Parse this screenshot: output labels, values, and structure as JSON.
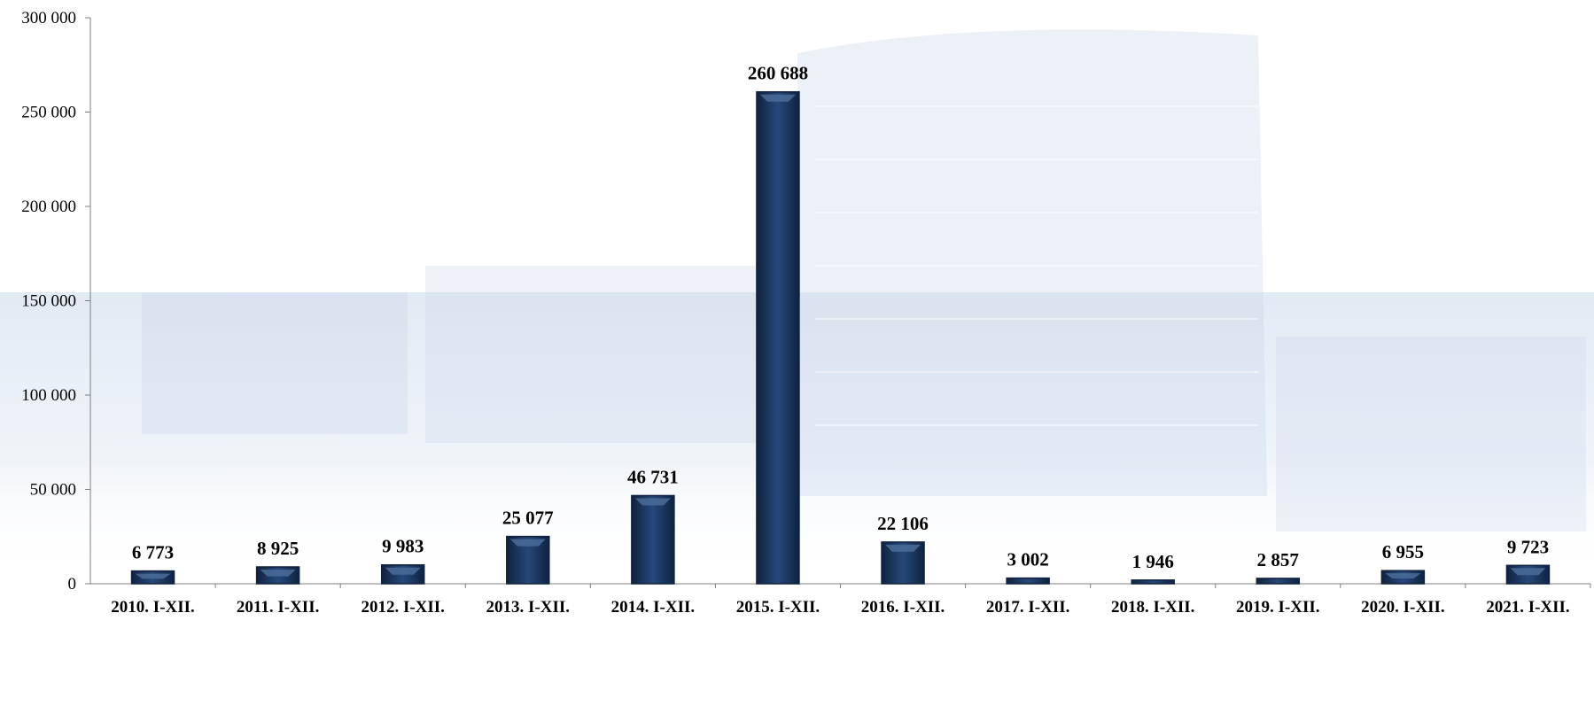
{
  "colors": {
    "bar": "#1f3a64",
    "bar_dark": "#10223f",
    "bar_highlight": "#4a6c98",
    "axis": "#7f7f7f",
    "background_tint": "#c9d8ea"
  },
  "chart_data": {
    "type": "bar",
    "title": "",
    "xlabel": "",
    "ylabel": "",
    "ylim": [
      0,
      300000
    ],
    "yticks": [
      0,
      50000,
      100000,
      150000,
      200000,
      250000,
      300000
    ],
    "ytick_labels": [
      "0",
      "50 000",
      "100 000",
      "150 000",
      "200 000",
      "250 000",
      "300 000"
    ],
    "grid": false,
    "legend": "none",
    "categories": [
      "2010. I-XII.",
      "2011. I-XII.",
      "2012. I-XII.",
      "2013. I-XII.",
      "2014. I-XII.",
      "2015. I-XII.",
      "2016. I-XII.",
      "2017. I-XII.",
      "2018. I-XII.",
      "2019. I-XII.",
      "2020. I-XII.",
      "2021. I-XII."
    ],
    "values": [
      6773,
      8925,
      9983,
      25077,
      46731,
      260688,
      22106,
      3002,
      1946,
      2857,
      6955,
      9723
    ],
    "value_labels": [
      "6 773",
      "8 925",
      "9 983",
      "25 077",
      "46 731",
      "260 688",
      "22 106",
      "3 002",
      "1 946",
      "2 857",
      "6 955",
      "9 723"
    ]
  }
}
